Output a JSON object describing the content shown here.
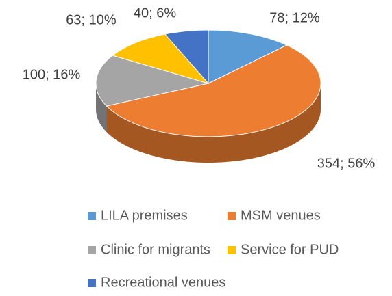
{
  "chart_data": {
    "type": "pie",
    "categories": [
      "LILA premises",
      "MSM venues",
      "Clinic for migrants",
      "Service for PUD",
      "Recreational venues"
    ],
    "values": [
      78,
      354,
      100,
      63,
      40
    ],
    "value_labels": [
      "78; 12%",
      "354; 56%",
      "100; 16%",
      "63; 10%",
      "40; 6%"
    ],
    "colors": [
      "#5b9bd5",
      "#ed7d31",
      "#a5a5a5",
      "#ffc000",
      "#4472c4"
    ],
    "legend": "bottom"
  }
}
